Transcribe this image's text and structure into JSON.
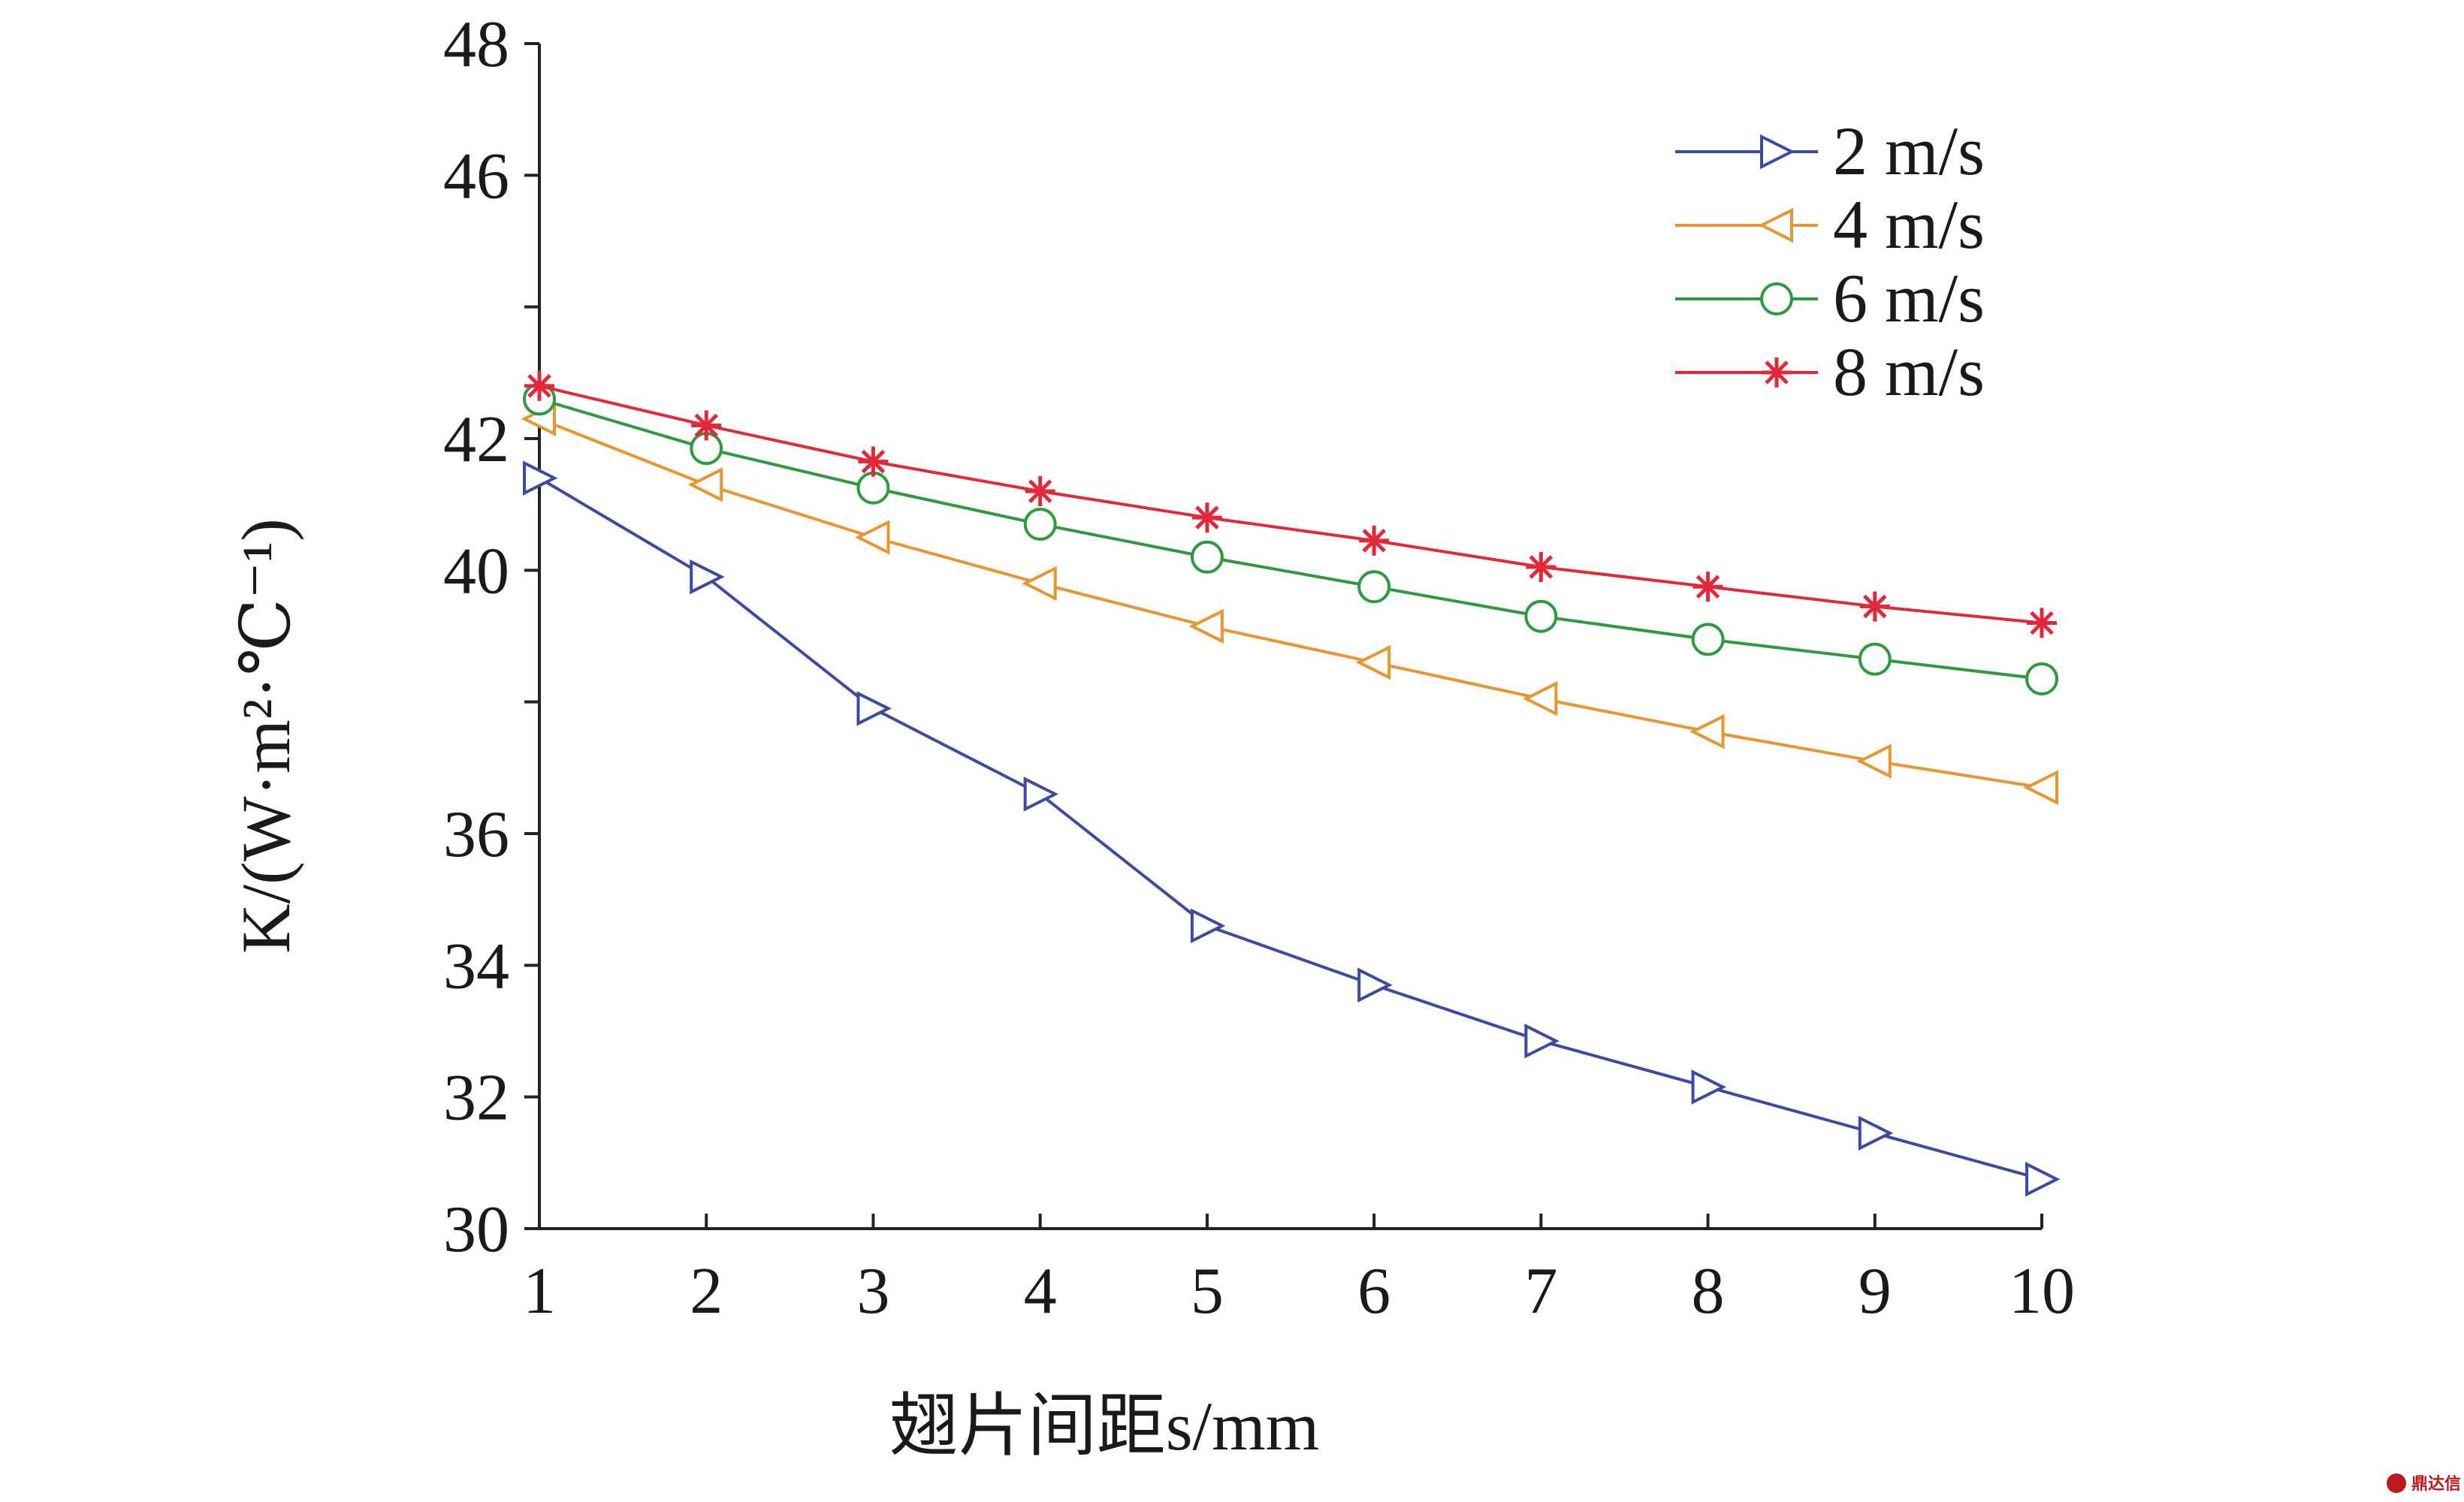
{
  "chart_data": {
    "type": "line",
    "x": [
      1,
      2,
      3,
      4,
      5,
      6,
      7,
      8,
      9,
      10
    ],
    "xlabel": "翅片间距s/mm",
    "ylabel": "K/(W·m²·℃⁻¹)",
    "xlim": [
      1,
      10
    ],
    "ylim": [
      30,
      48
    ],
    "xticks": [
      "1",
      "2",
      "3",
      "4",
      "5",
      "6",
      "7",
      "8",
      "9",
      "10"
    ],
    "yticks": [
      "30",
      "32",
      "34",
      "36",
      "40",
      "42",
      "46",
      "48"
    ],
    "grid": false,
    "legend_position": "top-right",
    "series": [
      {
        "name": "2 m/s",
        "color": "#3d4aa4",
        "marker": "triangle-right",
        "values": [
          41.4,
          39.9,
          37.9,
          36.6,
          34.6,
          33.7,
          32.85,
          32.15,
          31.45,
          30.75
        ]
      },
      {
        "name": "4 m/s",
        "color": "#e8962f",
        "marker": "triangle-left",
        "values": [
          42.3,
          41.3,
          40.5,
          39.8,
          39.15,
          38.6,
          38.05,
          37.55,
          37.1,
          36.7
        ]
      },
      {
        "name": "6 m/s",
        "color": "#2e9a3e",
        "marker": "circle",
        "values": [
          42.6,
          41.85,
          41.25,
          40.7,
          40.2,
          39.75,
          39.3,
          38.95,
          38.65,
          38.35
        ]
      },
      {
        "name": "8 m/s",
        "color": "#e3283a",
        "marker": "asterisk",
        "values": [
          42.8,
          42.2,
          41.65,
          41.2,
          40.8,
          40.45,
          40.05,
          39.75,
          39.45,
          39.2
        ]
      }
    ]
  },
  "watermark": {
    "icon": "badge-icon",
    "text": "鼎达信"
  }
}
